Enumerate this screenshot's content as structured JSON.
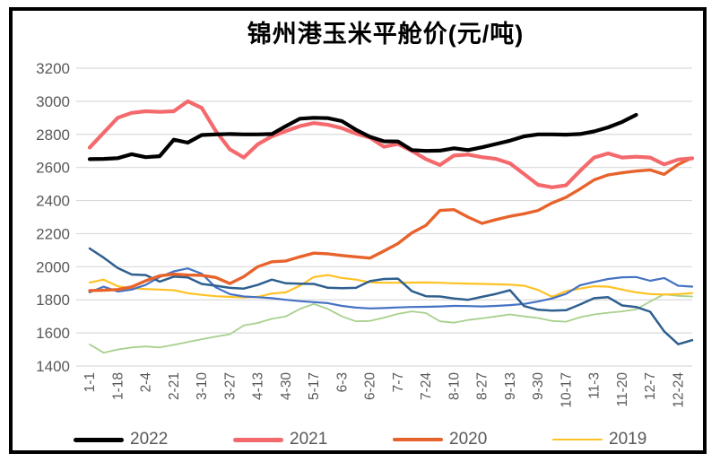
{
  "chart_data": {
    "type": "line",
    "title": "锦州港玉米平舱价(元/吨)",
    "xlabel": "",
    "ylabel": "",
    "ylim": [
      1400,
      3200
    ],
    "grid": true,
    "legend_position": "bottom",
    "colors": {
      "grid": "#D9D9D9",
      "tick_text": "#595959",
      "frame": "#000000"
    },
    "y_ticks": [
      3200,
      3000,
      2800,
      2600,
      2400,
      2200,
      2000,
      1800,
      1600,
      1400
    ],
    "x_tick_labels": [
      "1-1",
      "1-18",
      "2-4",
      "2-21",
      "3-10",
      "3-27",
      "4-13",
      "4-30",
      "5-17",
      "6-3",
      "6-20",
      "7-7",
      "7-24",
      "8-10",
      "8-27",
      "9-13",
      "9-30",
      "10-17",
      "11-3",
      "11-20",
      "12-7",
      "12-24"
    ],
    "legend": [
      {
        "label": "2022",
        "color": "#000000",
        "height": 5
      },
      {
        "label": "2021",
        "color": "#F4696C",
        "height": 5
      },
      {
        "label": "2020",
        "color": "#E8632C",
        "height": 4.5
      },
      {
        "label": "2019",
        "color": "#FFC224",
        "height": 2.5
      }
    ],
    "series": [
      {
        "name": "unlabeled-green",
        "color": "#A8D08D",
        "width": 1.8,
        "in_legend": false,
        "values": [
          1530,
          1480,
          1500,
          1512,
          1518,
          1512,
          1528,
          1545,
          1562,
          1578,
          1592,
          1645,
          1660,
          1685,
          1700,
          1745,
          1775,
          1745,
          1700,
          1670,
          1672,
          1692,
          1715,
          1730,
          1720,
          1670,
          1662,
          1678,
          1688,
          1700,
          1712,
          1700,
          1690,
          1672,
          1668,
          1695,
          1712,
          1722,
          1730,
          1742,
          1790,
          1833,
          1824,
          1820
        ]
      },
      {
        "name": "2019",
        "color": "#FFC224",
        "width": 2.2,
        "in_legend": true,
        "values": [
          1905,
          1922,
          1882,
          1870,
          1865,
          1862,
          1858,
          1840,
          1830,
          1822,
          1818,
          1815,
          1818,
          1838,
          1845,
          1885,
          1938,
          1950,
          1932,
          1922,
          1906,
          1903,
          1903,
          1904,
          1905,
          1903,
          1900,
          1898,
          1896,
          1894,
          1892,
          1885,
          1860,
          1818,
          1852,
          1868,
          1882,
          1880,
          1862,
          1845,
          1835,
          1832,
          1835,
          1840
        ]
      },
      {
        "name": "unlabeled-blue",
        "color": "#4472C4",
        "width": 2.2,
        "in_legend": false,
        "values": [
          1845,
          1880,
          1850,
          1862,
          1890,
          1938,
          1972,
          1990,
          1958,
          1875,
          1835,
          1820,
          1816,
          1810,
          1800,
          1792,
          1786,
          1780,
          1763,
          1753,
          1748,
          1750,
          1754,
          1757,
          1758,
          1760,
          1763,
          1762,
          1760,
          1763,
          1768,
          1775,
          1790,
          1808,
          1836,
          1888,
          1908,
          1926,
          1936,
          1938,
          1915,
          1932,
          1885,
          1880
        ]
      },
      {
        "name": "unlabeled-dark-blue",
        "color": "#2E5F8F",
        "width": 2.5,
        "in_legend": false,
        "values": [
          2110,
          2055,
          1992,
          1953,
          1950,
          1910,
          1940,
          1935,
          1896,
          1885,
          1872,
          1868,
          1890,
          1922,
          1900,
          1897,
          1896,
          1873,
          1870,
          1872,
          1913,
          1926,
          1928,
          1852,
          1822,
          1820,
          1808,
          1800,
          1818,
          1836,
          1858,
          1762,
          1740,
          1735,
          1737,
          1772,
          1810,
          1816,
          1766,
          1757,
          1728,
          1610,
          1532,
          1556
        ]
      },
      {
        "name": "2020",
        "color": "#E8632C",
        "width": 3.4,
        "in_legend": true,
        "values": [
          1856,
          1858,
          1862,
          1878,
          1915,
          1945,
          1955,
          1950,
          1948,
          1935,
          1898,
          1940,
          2000,
          2030,
          2035,
          2060,
          2082,
          2078,
          2068,
          2060,
          2052,
          2095,
          2140,
          2205,
          2250,
          2340,
          2345,
          2300,
          2262,
          2285,
          2305,
          2320,
          2340,
          2385,
          2420,
          2470,
          2525,
          2555,
          2568,
          2578,
          2585,
          2558,
          2618,
          2658
        ]
      },
      {
        "name": "2021",
        "color": "#F4696C",
        "width": 4.2,
        "in_legend": true,
        "values": [
          2720,
          2810,
          2900,
          2930,
          2940,
          2936,
          2940,
          3000,
          2960,
          2820,
          2710,
          2660,
          2740,
          2788,
          2820,
          2850,
          2868,
          2858,
          2838,
          2805,
          2780,
          2725,
          2742,
          2700,
          2650,
          2615,
          2672,
          2678,
          2662,
          2652,
          2625,
          2560,
          2495,
          2480,
          2492,
          2580,
          2660,
          2685,
          2660,
          2665,
          2660,
          2618,
          2648,
          2655
        ]
      },
      {
        "name": "2022",
        "color": "#000000",
        "width": 4.2,
        "in_legend": true,
        "values": [
          2650,
          2652,
          2656,
          2680,
          2662,
          2668,
          2768,
          2750,
          2796,
          2800,
          2802,
          2800,
          2800,
          2802,
          2850,
          2895,
          2900,
          2898,
          2880,
          2828,
          2785,
          2758,
          2757,
          2705,
          2700,
          2702,
          2716,
          2705,
          2722,
          2742,
          2762,
          2788,
          2800,
          2800,
          2798,
          2802,
          2818,
          2842,
          2875,
          2918,
          null,
          null,
          null,
          null
        ]
      }
    ]
  }
}
